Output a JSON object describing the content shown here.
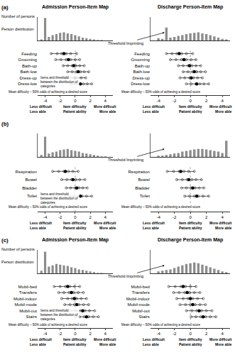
{
  "chart_data": [
    {
      "type": "person_item_map",
      "label": "(a)",
      "y_label": "Number of persons",
      "hist_label": "Person distribution",
      "arrow_label": "Threshold Imprinting",
      "items_label": [
        "Items and threshold",
        "between the distribution of",
        "categories"
      ],
      "mean_label": "Mean difficulty – 50% odds of achieving a desired score",
      "mean_difficulty": 0,
      "x_labels": [
        [
          "Less difficult",
          "Less able"
        ],
        [
          "Item difficulty",
          "Patient ability"
        ],
        [
          "More difficult",
          "More able"
        ]
      ],
      "xlim": [
        -5,
        5
      ],
      "xticks": [
        -4,
        -2,
        0,
        2,
        4
      ],
      "panels": [
        {
          "title": "Admission Person-Item Map",
          "person_distribution": {
            "color": "#8c8c8c",
            "ylim": [
              0,
              40
            ],
            "x": [
              -4.5,
              -4,
              -3.5,
              -3,
              -2.5,
              -2,
              -1.5,
              -1,
              -0.5,
              0,
              0.5,
              1,
              1.5,
              2,
              2.5,
              3,
              3.5,
              4,
              4.5
            ],
            "values": [
              2,
              38,
              6,
              9,
              11,
              13,
              14,
              12,
              11,
              9,
              7,
              5,
              4,
              3,
              2,
              1,
              1,
              0,
              0
            ]
          },
          "items": [
            {
              "name": "Feeding",
              "color": "#333333",
              "values": [
                -3.2,
                -2.4,
                -1.8,
                -1.2,
                -0.6,
                0.2
              ],
              "mean": -1.5
            },
            {
              "name": "Grooming",
              "color": "#333333",
              "values": [
                -2.6,
                -1.9,
                -1.2,
                -0.6,
                0,
                0.6
              ],
              "mean": -0.9
            },
            {
              "name": "Bath-up",
              "color": "#333333",
              "values": [
                -1.6,
                -1,
                -0.4,
                0.1,
                0.6,
                1.2
              ],
              "mean": -0.2
            },
            {
              "name": "Bath-low",
              "color": "#333333",
              "values": [
                -1,
                -0.4,
                0.2,
                0.7,
                1.2,
                1.8
              ],
              "mean": 0.4
            },
            {
              "name": "Dress-up",
              "color": "#333333",
              "values": [
                -1.4,
                -0.8,
                -0.2,
                0.3,
                0.8,
                1.4
              ],
              "mean": 0
            },
            {
              "name": "Dress-low",
              "color": "#333333",
              "values": [
                -0.6,
                0,
                0.6,
                1.1,
                1.6,
                2.2
              ],
              "mean": 0.7
            }
          ]
        },
        {
          "title": "Discharge Person-Item Map",
          "person_distribution": {
            "color": "#8c8c8c",
            "ylim": [
              0,
              40
            ],
            "x": [
              -4.5,
              -4,
              -3.5,
              -3,
              -2.5,
              -2,
              -1.5,
              -1,
              -0.5,
              0,
              0.5,
              1,
              1.5,
              2,
              2.5,
              3,
              3.5,
              4,
              4.5
            ],
            "values": [
              0,
              4,
              3,
              22,
              5,
              6,
              8,
              9,
              11,
              12,
              13,
              14,
              12,
              11,
              9,
              7,
              5,
              3,
              2
            ]
          },
          "items": [
            {
              "name": "Feeding",
              "color": "#333333",
              "values": [
                -3,
                -2.3,
                -1.7,
                -1.1,
                -0.5,
                0.3
              ],
              "mean": -1.4
            },
            {
              "name": "Grooming",
              "color": "#333333",
              "values": [
                -2.5,
                -1.8,
                -1.1,
                -0.5,
                0.1,
                0.7
              ],
              "mean": -0.8
            },
            {
              "name": "Bath-up",
              "color": "#333333",
              "values": [
                -1.5,
                -0.9,
                -0.3,
                0.2,
                0.7,
                1.3
              ],
              "mean": -0.1
            },
            {
              "name": "Bath-low",
              "color": "#333333",
              "values": [
                -0.9,
                -0.3,
                0.3,
                0.8,
                1.3,
                1.9
              ],
              "mean": 0.5
            },
            {
              "name": "Dress-up",
              "color": "#333333",
              "values": [
                -1.3,
                -0.7,
                -0.1,
                0.4,
                0.9,
                1.5
              ],
              "mean": 0.1
            },
            {
              "name": "Dress-low",
              "color": "#333333",
              "values": [
                -0.5,
                0.1,
                0.7,
                1.2,
                1.7,
                2.3
              ],
              "mean": 0.8
            }
          ]
        }
      ]
    },
    {
      "type": "person_item_map",
      "label": "(b)",
      "arrow_label": "Threshold Imprinting",
      "items_label": [
        "Items and threshold",
        "between the distribution of",
        "categories"
      ],
      "mean_label": "Mean difficulty – 50% odds of achieving a desired score",
      "mean_difficulty": 0,
      "x_labels": [
        [
          "Less difficult",
          "Less able"
        ],
        [
          "Item difficulty",
          "Patient ability"
        ],
        [
          "More difficult",
          "More able"
        ]
      ],
      "xlim": [
        -5,
        5
      ],
      "xticks": [
        -4,
        -2,
        0,
        2,
        4
      ],
      "panels": [
        {
          "person_distribution": {
            "color": "#8c8c8c",
            "ylim": [
              0,
              35
            ],
            "x": [
              -4.5,
              -4,
              -3.5,
              -3,
              -2.5,
              -2,
              -1.5,
              -1,
              -0.5,
              0,
              0.5,
              1,
              1.5,
              2,
              2.5,
              3,
              3.5,
              4,
              4.5
            ],
            "values": [
              3,
              30,
              5,
              7,
              8,
              10,
              11,
              12,
              10,
              9,
              8,
              6,
              5,
              4,
              3,
              2,
              1,
              1,
              0
            ]
          },
          "items": [
            {
              "name": "Respiration",
              "color": "#333333",
              "values": [
                -3,
                -2.2,
                -1.5,
                -0.9,
                -0.3,
                0.4
              ],
              "mean": -1.3
            },
            {
              "name": "Bowel",
              "color": "#333333",
              "values": [
                -1.8,
                -1.1,
                -0.5,
                0.1,
                0.6,
                1.3
              ],
              "mean": -0.3
            },
            {
              "name": "Bladder",
              "color": "#333333",
              "values": [
                -1.2,
                -0.6,
                0,
                0.5,
                1,
                1.6
              ],
              "mean": 0.2
            },
            {
              "name": "Toilet",
              "color": "#333333",
              "values": [
                -0.8,
                -0.2,
                0.4,
                0.9,
                1.5,
                2.2
              ],
              "mean": 0.7
            }
          ]
        },
        {
          "person_distribution": {
            "color": "#8c8c8c",
            "ylim": [
              0,
              35
            ],
            "x": [
              -4.5,
              -4,
              -3.5,
              -3,
              -2.5,
              -2,
              -1.5,
              -1,
              -0.5,
              0,
              0.5,
              1,
              1.5,
              2,
              2.5,
              3,
              3.5,
              4,
              4.5
            ],
            "values": [
              0,
              2,
              2,
              3,
              4,
              5,
              6,
              8,
              9,
              10,
              11,
              12,
              12,
              11,
              10,
              9,
              8,
              6,
              24
            ]
          },
          "items": [
            {
              "name": "Respiration",
              "color": "#333333",
              "values": [
                -2.9,
                -2.1,
                -1.4,
                -0.8,
                -0.2,
                0.5
              ],
              "mean": -1.2
            },
            {
              "name": "Bowel",
              "color": "#333333",
              "values": [
                -1.7,
                -1,
                -0.4,
                0.2,
                0.7,
                1.4
              ],
              "mean": -0.2
            },
            {
              "name": "Bladder",
              "color": "#333333",
              "values": [
                -1.1,
                -0.5,
                0.1,
                0.6,
                1.1,
                1.7
              ],
              "mean": 0.3
            },
            {
              "name": "Toilet",
              "color": "#333333",
              "values": [
                -0.7,
                -0.1,
                0.5,
                1,
                1.6,
                2.3
              ],
              "mean": 0.8
            }
          ]
        }
      ]
    },
    {
      "type": "person_item_map",
      "label": "(c)",
      "y_label": "Number of persons",
      "hist_label": "Person distribution",
      "arrow_label": "Threshold Imprinting",
      "items_label": [
        "Items and threshold",
        "between the distribution of",
        "categories"
      ],
      "mean_label": "Mean difficulty – 50% odds of achieving a desired score",
      "mean_difficulty": 0,
      "x_labels": [
        [
          "Less difficult",
          "Less able"
        ],
        [
          "Item difficulty",
          "Patient ability"
        ],
        [
          "More difficult",
          "More able"
        ]
      ],
      "xlim": [
        -5,
        5
      ],
      "xticks": [
        -4,
        -2,
        0,
        2,
        4
      ],
      "panels": [
        {
          "title": "Admission Person-Item Map",
          "person_distribution": {
            "color": "#8c8c8c",
            "ylim": [
              0,
              35
            ],
            "x": [
              -4.5,
              -4,
              -3.5,
              -3,
              -2.5,
              -2,
              -1.5,
              -1,
              -0.5,
              0,
              0.5,
              1,
              1.5,
              2,
              2.5,
              3,
              3.5,
              4,
              4.5
            ],
            "values": [
              4,
              32,
              10,
              12,
              14,
              13,
              12,
              11,
              9,
              8,
              6,
              5,
              4,
              3,
              2,
              1,
              1,
              0,
              0
            ]
          },
          "items": [
            {
              "name": "Mobil-bed",
              "color": "#333333",
              "values": [
                -2.8,
                -2,
                -1.3,
                -0.7,
                -0.1,
                0.6
              ],
              "mean": -1
            },
            {
              "name": "Transfers",
              "color": "#333333",
              "values": [
                -2.2,
                -1.5,
                -0.8,
                -0.2,
                0.4,
                1.1
              ],
              "mean": -0.5
            },
            {
              "name": "Mobil-indoor",
              "color": "#333333",
              "values": [
                -1.8,
                -1,
                -0.4,
                0.2,
                0.8,
                1.5
              ],
              "mean": -0.1
            },
            {
              "name": "Mobil-mode",
              "color": "#333333",
              "values": [
                -1.4,
                -0.7,
                -0.1,
                0.5,
                1.1,
                1.8
              ],
              "mean": 0.2
            },
            {
              "name": "Mobil-out",
              "color": "#333333",
              "values": [
                -0.6,
                0.1,
                0.7,
                1.3,
                1.9,
                2.6
              ],
              "mean": 1
            },
            {
              "name": "Stairs",
              "color": "#333333",
              "values": [
                0,
                0.6,
                1.2,
                1.8,
                2.4,
                3.1
              ],
              "mean": 1.5
            }
          ]
        },
        {
          "title": "Discharge Person-Item Map",
          "person_distribution": {
            "color": "#8c8c8c",
            "ylim": [
              0,
              35
            ],
            "x": [
              -4.5,
              -4,
              -3.5,
              -3,
              -2.5,
              -2,
              -1.5,
              -1,
              -0.5,
              0,
              0.5,
              1,
              1.5,
              2,
              2.5,
              3,
              3.5,
              4,
              4.5
            ],
            "values": [
              0,
              3,
              4,
              5,
              6,
              8,
              10,
              12,
              14,
              15,
              16,
              15,
              13,
              11,
              9,
              7,
              5,
              3,
              2
            ]
          },
          "items": [
            {
              "name": "Mobil-bed",
              "color": "#333333",
              "values": [
                -2.7,
                -1.9,
                -1.2,
                -0.6,
                0,
                0.7
              ],
              "mean": -0.9
            },
            {
              "name": "Transfers",
              "color": "#333333",
              "values": [
                -2.1,
                -1.4,
                -0.7,
                -0.1,
                0.5,
                1.2
              ],
              "mean": -0.4
            },
            {
              "name": "Mobil-indoor",
              "color": "#333333",
              "values": [
                -1.7,
                -0.9,
                -0.3,
                0.3,
                0.9,
                1.6
              ],
              "mean": 0
            },
            {
              "name": "Mobil-mode",
              "color": "#333333",
              "values": [
                -1.3,
                -0.6,
                0,
                0.6,
                1.2,
                1.9
              ],
              "mean": 0.3
            },
            {
              "name": "Mobil-out",
              "color": "#333333",
              "values": [
                -0.5,
                0.2,
                0.8,
                1.4,
                2,
                2.7
              ],
              "mean": 1.1
            },
            {
              "name": "Stairs",
              "color": "#333333",
              "values": [
                0.1,
                0.7,
                1.3,
                1.9,
                2.5,
                3.2
              ],
              "mean": 1.6
            }
          ]
        }
      ]
    }
  ]
}
